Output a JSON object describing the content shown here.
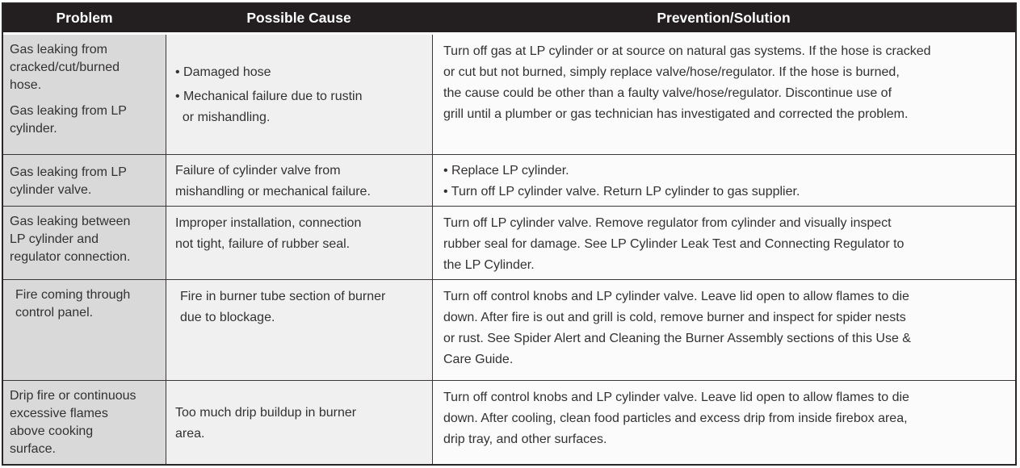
{
  "colors": {
    "header_bg": "#231f20",
    "header_text": "#ffffff",
    "col1_bg": "#d9d9d9",
    "col2_bg": "#f0f0f0",
    "col3_bg": "#fbfbfb",
    "line": "#3b3637",
    "outer": "#2a2627",
    "text_color": "#333132"
  },
  "table": {
    "headers": [
      "Problem",
      "Possible Cause",
      "Prevention/Solution"
    ],
    "rows": [
      {
        "problem": [
          "Gas leaking from\ncracked/cut/burned\nhose.",
          "Gas leaking from LP\ncylinder."
        ],
        "cause": [
          "• Damaged hose",
          "• Mechanical failure due to rustin\n  or mishandling."
        ],
        "solution": [
          "Turn off gas at LP cylinder or at source on natural gas systems. If the hose is cracked\nor cut but not burned, simply replace valve/hose/regulator. If the hose is burned,\nthe cause could be other than a faulty valve/hose/regulator. Discontinue use of\ngrill until a plumber or gas technician has investigated and corrected the problem."
        ]
      },
      {
        "problem": [
          "Gas leaking from LP\ncylinder valve."
        ],
        "cause": [
          "Failure of cylinder valve from\nmishandling or mechanical failure."
        ],
        "solution": [
          "• Replace LP cylinder.\n• Turn off LP cylinder valve. Return LP cylinder to gas supplier."
        ]
      },
      {
        "problem": [
          "Gas leaking between\nLP cylinder and\nregulator connection."
        ],
        "cause": [
          "Improper installation, connection\nnot tight, failure of rubber seal."
        ],
        "solution": [
          "Turn off LP cylinder valve. Remove regulator from cylinder and visually inspect\nrubber seal for damage. See LP Cylinder Leak Test and Connecting Regulator to\nthe LP Cylinder."
        ]
      },
      {
        "problem": [
          "Fire coming through\ncontrol panel."
        ],
        "cause": [
          "Fire in burner tube section of burner\ndue to blockage."
        ],
        "solution": [
          "Turn off control knobs and LP cylinder valve. Leave lid open to allow flames to die\ndown. After fire is out and grill is cold, remove burner and inspect for spider nests\nor rust. See Spider Alert and Cleaning the Burner Assembly sections of this Use &\nCare Guide."
        ]
      },
      {
        "problem": [
          "Drip fire or continuous\nexcessive flames\nabove cooking\nsurface."
        ],
        "cause": [
          "Too much drip buildup in burner\narea."
        ],
        "solution": [
          "Turn off control knobs and LP cylinder valve. Leave lid open to allow flames to die\ndown. After cooling, clean food particles and excess drip from inside firebox area,\ndrip tray, and other surfaces."
        ]
      }
    ]
  }
}
